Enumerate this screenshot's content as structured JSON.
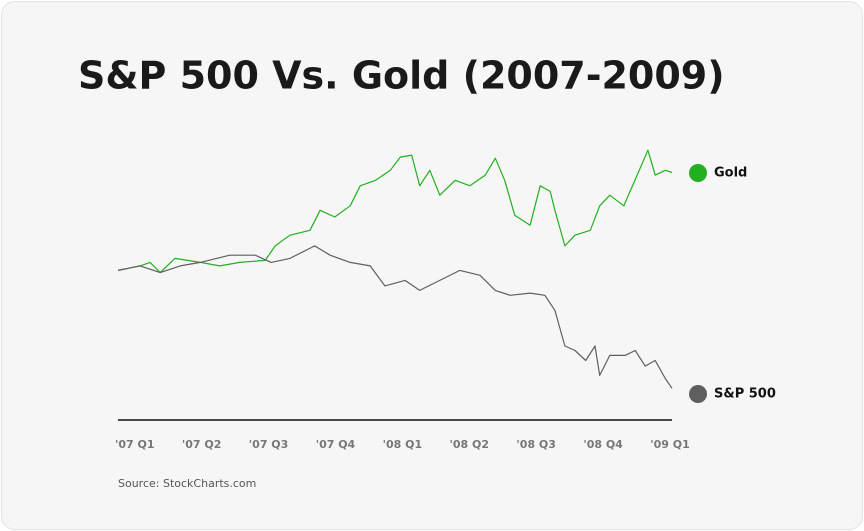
{
  "chart_data": {
    "type": "line",
    "title": "S&P 500 Vs. Gold (2007-2009)",
    "source": "Source: StockCharts.com",
    "xlim": [
      0,
      8.4
    ],
    "xticks": [
      {
        "value": 0,
        "label": "'07 Q1"
      },
      {
        "value": 1,
        "label": "'07 Q2"
      },
      {
        "value": 2,
        "label": "'07 Q3"
      },
      {
        "value": 3,
        "label": "'07 Q4"
      },
      {
        "value": 4,
        "label": "'08 Q1"
      },
      {
        "value": 5,
        "label": "'08 Q2"
      },
      {
        "value": 6,
        "label": "'08 Q3"
      },
      {
        "value": 7,
        "label": "'08 Q4"
      },
      {
        "value": 8,
        "label": "'09 Q1"
      }
    ],
    "ylim": [
      35,
      155
    ],
    "series": [
      {
        "name": "Gold",
        "color": "#22b01e",
        "x": [
          0,
          0.33,
          0.48,
          0.63,
          0.85,
          1.23,
          1.52,
          1.82,
          2.2,
          2.35,
          2.57,
          2.87,
          3.02,
          3.24,
          3.47,
          3.62,
          3.85,
          4.07,
          4.22,
          4.39,
          4.51,
          4.66,
          4.81,
          5.04,
          5.26,
          5.49,
          5.64,
          5.78,
          5.93,
          6.16,
          6.31,
          6.46,
          6.53,
          6.68,
          6.83,
          7.06,
          7.2,
          7.35,
          7.56,
          7.76,
          7.92,
          8.03,
          8.18,
          8.28
        ],
        "values": [
          100,
          102,
          103.6,
          99,
          105.4,
          103.6,
          102,
          103.6,
          104.5,
          111,
          115.8,
          118,
          127,
          124,
          129,
          138,
          140.5,
          145,
          150.9,
          151.8,
          138,
          145,
          133.8,
          140.5,
          138,
          142.8,
          150.4,
          140.5,
          124.8,
          120.3,
          138,
          135.5,
          127,
          111,
          115.8,
          118,
          129,
          133.8,
          129,
          142.8,
          154,
          142.8,
          145,
          144
        ]
      },
      {
        "name": "S&P 500",
        "color": "#5f5f5f",
        "x": [
          0,
          0.33,
          0.63,
          0.93,
          1.23,
          1.67,
          2.05,
          2.29,
          2.57,
          2.94,
          3.17,
          3.47,
          3.77,
          3.99,
          4.29,
          4.51,
          4.81,
          5.11,
          5.41,
          5.64,
          5.86,
          6.16,
          6.38,
          6.53,
          6.68,
          6.83,
          6.99,
          7.13,
          7.2,
          7.35,
          7.58,
          7.73,
          7.88,
          8.03,
          8.18,
          8.28
        ],
        "values": [
          100,
          102,
          99,
          102,
          103.6,
          106.8,
          106.8,
          103.6,
          105.4,
          111,
          106.8,
          103.6,
          102,
          93,
          95.5,
          91,
          95.5,
          100,
          97.8,
          91,
          88.8,
          89.8,
          88.8,
          82,
          66,
          64,
          59.5,
          66,
          52.8,
          61.8,
          61.8,
          64,
          57,
          59.5,
          51.4,
          47
        ]
      }
    ]
  }
}
